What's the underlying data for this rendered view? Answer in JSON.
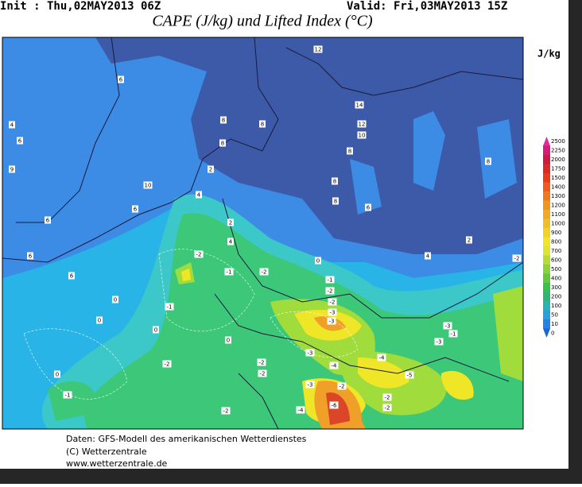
{
  "header": {
    "init": "Init : Thu,02MAY2013 06Z",
    "valid": "Valid: Fri,03MAY2013 15Z",
    "title": "CAPE (J/kg) und Lifted Index (°C)"
  },
  "legend": {
    "unit": "J/kg",
    "levels": [
      "2500",
      "2250",
      "2000",
      "1750",
      "1500",
      "1400",
      "1300",
      "1200",
      "1100",
      "1000",
      "900",
      "800",
      "700",
      "600",
      "500",
      "400",
      "300",
      "200",
      "100",
      "50",
      "10",
      "0"
    ]
  },
  "map": {
    "labels": [
      "12",
      "6",
      "14",
      "12",
      "10",
      "8",
      "8",
      "4",
      "6",
      "8",
      "8",
      "8",
      "2",
      "9",
      "10",
      "4",
      "8",
      "6",
      "6",
      "8",
      "6",
      "2",
      "4",
      "2",
      "4",
      "6",
      "-2",
      "-1",
      "-2",
      "0",
      "-2",
      "6",
      "-1",
      "-2",
      "-2",
      "-3",
      "-3",
      "-1",
      "0",
      "0",
      "0",
      "-3",
      "-1",
      "-3",
      "0",
      "-3",
      "-4",
      "-2",
      "-2",
      "-2",
      "-4",
      "-5",
      "0",
      "-3",
      "-2",
      "-1",
      "-6",
      "-4",
      "-2",
      "-2",
      "-2"
    ]
  },
  "footer": {
    "lines": [
      "Daten: GFS-Modell des amerikanischen Wetterdienstes",
      "(C) Wetterzentrale",
      "www.wetterzentrale.de"
    ]
  }
}
